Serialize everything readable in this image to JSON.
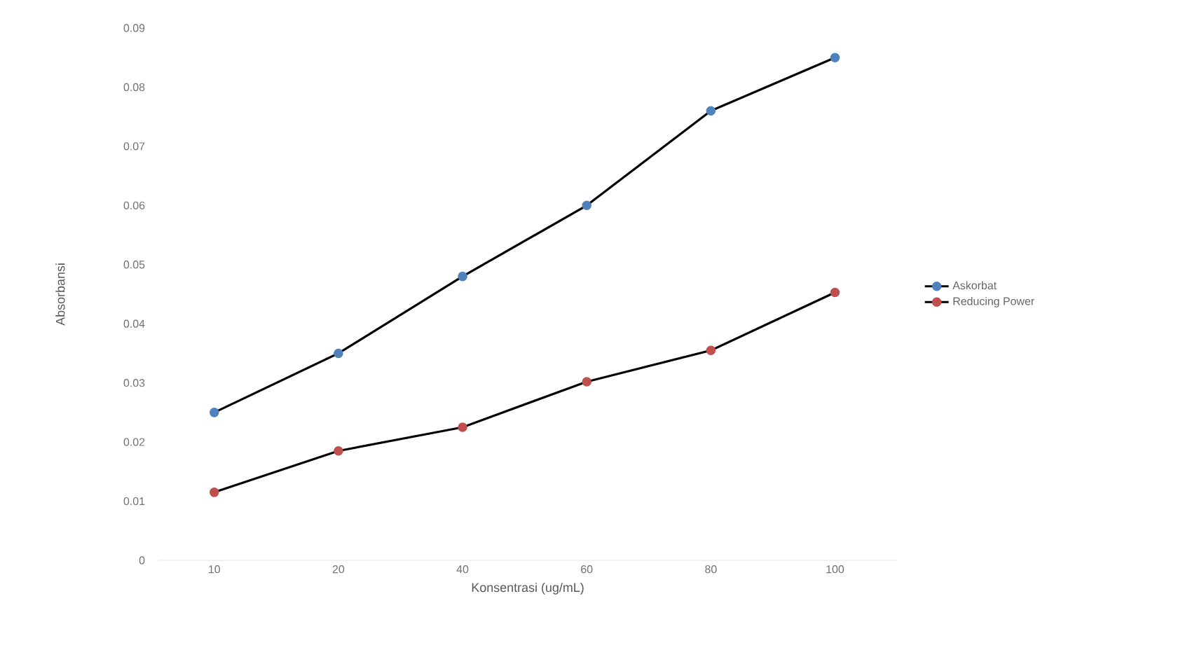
{
  "chart_data": {
    "type": "line",
    "xlabel": "Konsentrasi (ug/mL)",
    "ylabel": "Absorbansi",
    "categories": [
      "10",
      "20",
      "40",
      "60",
      "80",
      "100"
    ],
    "series": [
      {
        "name": "Askorbat",
        "color": "#4f81bd",
        "values": [
          0.025,
          0.035,
          0.048,
          0.06,
          0.076,
          0.085
        ]
      },
      {
        "name": "Reducing Power",
        "color": "#c0504d",
        "values": [
          0.0115,
          0.0185,
          0.0225,
          0.0302,
          0.0355,
          0.0453
        ]
      }
    ],
    "ylim": [
      0,
      0.09
    ],
    "yticks": [
      0,
      0.01,
      0.02,
      0.03,
      0.04,
      0.05,
      0.06,
      0.07,
      0.08,
      0.09
    ],
    "grid": false,
    "legend": "right",
    "marker": "circle",
    "line_style": "solid"
  }
}
